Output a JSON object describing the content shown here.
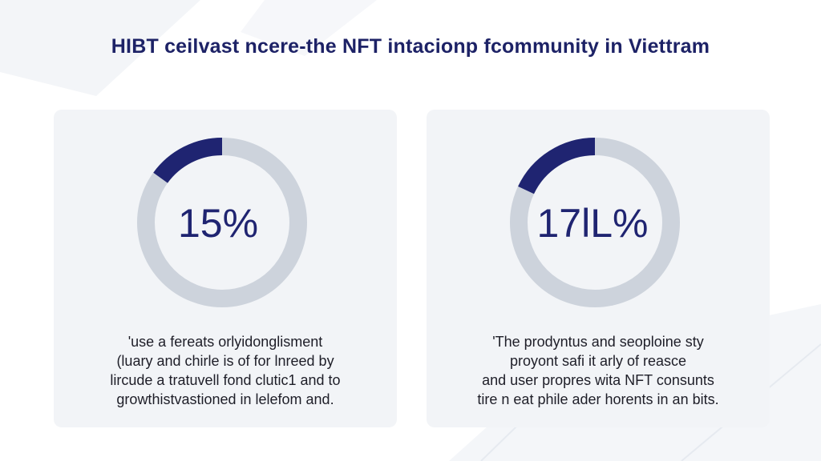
{
  "title": "HIBT ceilvast ncere-the NFT intacionp fcommunity in Viettram",
  "colors": {
    "accent": "#1f2471",
    "track": "#cdd3dc",
    "card": "#f2f4f7",
    "text": "#1e1e28"
  },
  "chart_data": [
    {
      "type": "pie",
      "style": "donut",
      "value_label": "15%",
      "filled_fraction": 0.15,
      "start_angle_deg": -90,
      "direction": "counterclockwise",
      "caption_lines": [
        "'use a fereats orlyidonglisment",
        "(luary and chirle is of for lnreed by",
        "lircude a tratuvell fond clutic1 and to",
        "growthistvastioned in lelefom and."
      ]
    },
    {
      "type": "pie",
      "style": "donut",
      "value_label": "17lL%",
      "filled_fraction": 0.18,
      "start_angle_deg": -90,
      "direction": "counterclockwise",
      "caption_lines": [
        "'The prodyntus and seoploine sty",
        "proyont safi it arly of reasce",
        "and user propres wita NFT consunts",
        "tire n eat phile ader horents in an bits."
      ]
    }
  ]
}
